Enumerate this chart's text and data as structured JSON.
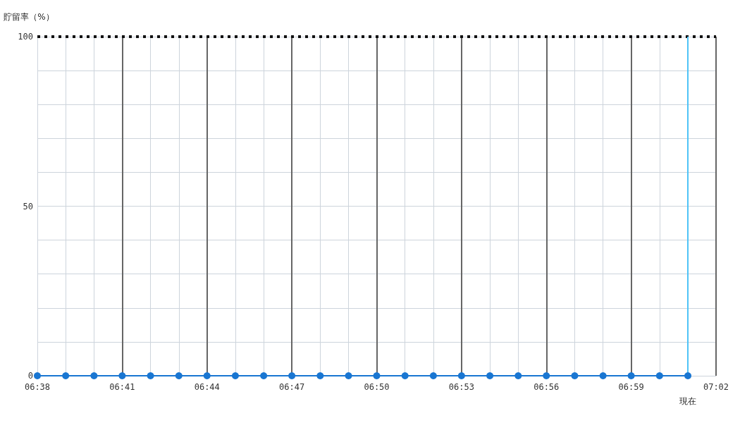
{
  "chart_data": {
    "type": "line",
    "ylabel": "貯留率（%）",
    "x": [
      6.6333,
      6.65,
      6.6667,
      6.6833,
      6.7,
      6.7167,
      6.7333,
      6.75,
      6.7667,
      6.7833,
      6.8,
      6.8167,
      6.8333,
      6.85,
      6.8667,
      6.8833,
      6.9,
      6.9167,
      6.9333,
      6.95,
      6.9667,
      6.9833,
      7,
      7.0167
    ],
    "series": [
      {
        "color": "#1976d2",
        "values": [
          0,
          0,
          0,
          0,
          0,
          0,
          0,
          0,
          0,
          0,
          0,
          0,
          0,
          0,
          0,
          0,
          0,
          0,
          0,
          0,
          0,
          0,
          0,
          0
        ]
      }
    ],
    "xlim": [
      6.6333,
      7.0333
    ],
    "xticks": [
      {
        "value": 6.6333,
        "label": "06:38"
      },
      {
        "value": 6.65,
        "label": null
      },
      {
        "value": 6.6667,
        "label": null
      },
      {
        "value": 6.6833,
        "label": "06:41"
      },
      {
        "value": 6.7,
        "label": null
      },
      {
        "value": 6.7167,
        "label": null
      },
      {
        "value": 6.7333,
        "label": "06:44"
      },
      {
        "value": 6.75,
        "label": null
      },
      {
        "value": 6.7667,
        "label": null
      },
      {
        "value": 6.7833,
        "label": "06:47"
      },
      {
        "value": 6.8,
        "label": null
      },
      {
        "value": 6.8167,
        "label": null
      },
      {
        "value": 6.8333,
        "label": "06:50"
      },
      {
        "value": 6.85,
        "label": null
      },
      {
        "value": 6.8667,
        "label": null
      },
      {
        "value": 6.8833,
        "label": "06:53"
      },
      {
        "value": 6.9,
        "label": null
      },
      {
        "value": 6.9167,
        "label": null
      },
      {
        "value": 6.9333,
        "label": "06:56"
      },
      {
        "value": 6.95,
        "label": null
      },
      {
        "value": 6.9667,
        "label": null
      },
      {
        "value": 6.9833,
        "label": "06:59"
      },
      {
        "value": 7,
        "label": null
      },
      {
        "value": 7.0167,
        "label": null
      },
      {
        "value": 7.0333,
        "label": "07:02"
      }
    ],
    "ylim": [
      0,
      100
    ],
    "yticks": [
      0,
      {
        "value": 10,
        "label": null
      },
      {
        "value": 20,
        "label": null
      },
      {
        "value": 30,
        "label": null
      },
      {
        "value": 40,
        "label": null
      },
      50,
      {
        "value": 60,
        "label": null
      },
      {
        "value": 70,
        "label": null
      },
      {
        "value": 80,
        "label": null
      },
      {
        "value": 90,
        "label": null
      },
      100
    ],
    "grid": true,
    "marker": "circle",
    "ref_lines": [
      {
        "axis": "y",
        "value": 100,
        "color": "#111111",
        "line_style": "dotted"
      },
      {
        "axis": "x",
        "value": 7.0167,
        "label": "現在",
        "color": "#4fc3f7"
      }
    ]
  }
}
